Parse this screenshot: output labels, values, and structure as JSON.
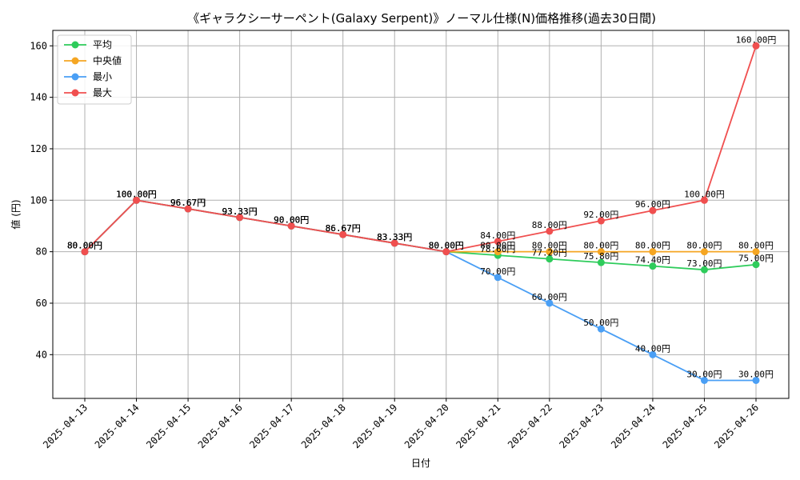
{
  "chart_data": {
    "type": "line",
    "title": "《ギャラクシーサーペント(Galaxy Serpent)》ノーマル仕様(N)価格推移(過去30日間)",
    "xlabel": "日付",
    "ylabel": "値 (円)",
    "ylim": [
      23,
      166
    ],
    "yticks": [
      40,
      60,
      80,
      100,
      120,
      140,
      160
    ],
    "grid": true,
    "legend_position": "top-left",
    "value_suffix": "円",
    "categories": [
      "2025-04-13",
      "2025-04-14",
      "2025-04-15",
      "2025-04-16",
      "2025-04-17",
      "2025-04-18",
      "2025-04-19",
      "2025-04-20",
      "2025-04-21",
      "2025-04-22",
      "2025-04-23",
      "2025-04-24",
      "2025-04-25",
      "2025-04-26"
    ],
    "series": [
      {
        "name": "平均",
        "color": "#2ecc5b",
        "values": [
          80.0,
          100.0,
          96.67,
          93.33,
          90.0,
          86.67,
          83.33,
          80.0,
          78.6,
          77.2,
          75.8,
          74.4,
          73.0,
          75.0
        ]
      },
      {
        "name": "中央値",
        "color": "#f5a623",
        "values": [
          80.0,
          100.0,
          96.67,
          93.33,
          90.0,
          86.67,
          83.33,
          80.0,
          80.0,
          80.0,
          80.0,
          80.0,
          80.0,
          80.0
        ]
      },
      {
        "name": "最小",
        "color": "#4a9ff5",
        "values": [
          80.0,
          100.0,
          96.67,
          93.33,
          90.0,
          86.67,
          83.33,
          80.0,
          70.0,
          60.0,
          50.0,
          40.0,
          30.0,
          30.0
        ]
      },
      {
        "name": "最大",
        "color": "#f04f4f",
        "values": [
          80.0,
          100.0,
          96.67,
          93.33,
          90.0,
          86.67,
          83.33,
          80.0,
          84.0,
          88.0,
          92.0,
          96.0,
          100.0,
          160.0
        ]
      }
    ]
  }
}
